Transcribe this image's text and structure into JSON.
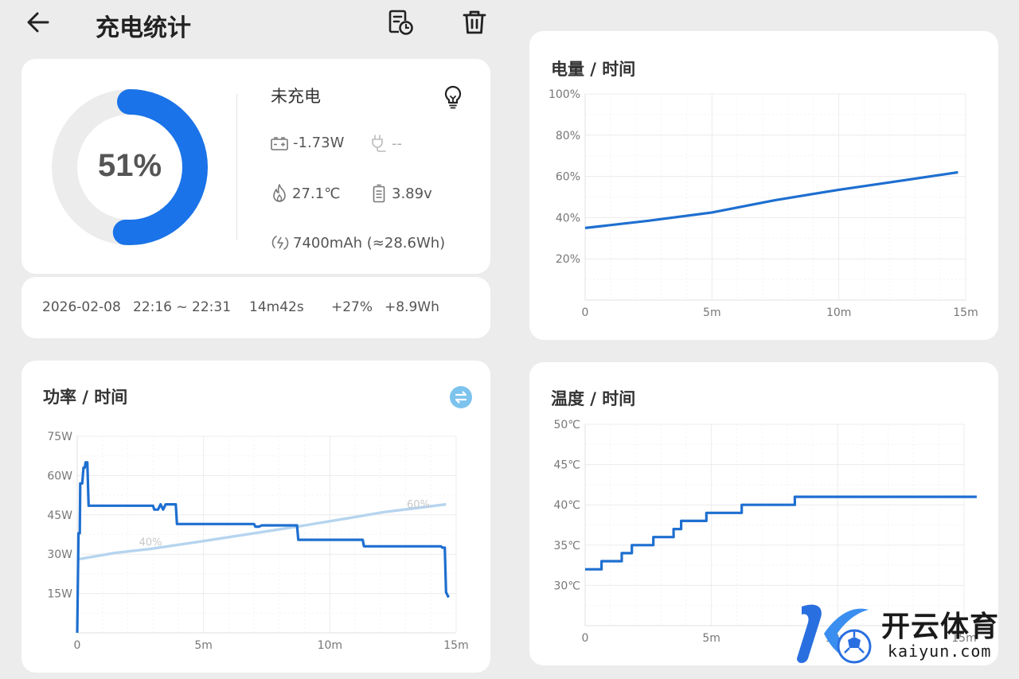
{
  "header": {
    "title": "充电统计"
  },
  "battery": {
    "percent_label": "51%",
    "percent": 51,
    "status": "未充电",
    "power": "-1.73W",
    "charger": "--",
    "temperature": "27.1℃",
    "voltage": "3.89v",
    "capacity": "7400mAh (≈28.6Wh)"
  },
  "session": {
    "date": "2026-02-08",
    "time_range": "22:16 ~ 22:31",
    "duration": "14m42s",
    "percent_change": "+27%",
    "energy_change": "+8.9Wh"
  },
  "watermark": {
    "name": "开云体育",
    "domain": "kaiyun.com"
  },
  "colors": {
    "accent": "#1a73e8",
    "line": "#1e6fd0",
    "light_line": "#b6d4ef",
    "ring_bg": "#ececec"
  },
  "chart_data": [
    {
      "type": "line",
      "title": "电量 / 时间",
      "x_ticks": [
        "0",
        "5m",
        "10m",
        "15m"
      ],
      "y_ticks": [
        "100%",
        "80%",
        "60%",
        "40%",
        "20%"
      ],
      "xlim": [
        0,
        15
      ],
      "ylim": [
        0,
        100
      ],
      "series": [
        {
          "x": [
            0,
            2.5,
            5,
            7.5,
            10,
            12.5,
            14.7
          ],
          "y": [
            35,
            38.5,
            42.5,
            48.5,
            53.5,
            58,
            62
          ]
        }
      ]
    },
    {
      "type": "line",
      "title": "功率 / 时间",
      "x_ticks": [
        "0",
        "5m",
        "10m",
        "15m"
      ],
      "y_ticks": [
        "75W",
        "60W",
        "45W",
        "30W",
        "15W"
      ],
      "xlim": [
        0,
        15
      ],
      "ylim": [
        0,
        75
      ],
      "annotations": [
        "40%",
        "60%"
      ],
      "series": [
        {
          "x": [
            0,
            0.05,
            0.1,
            0.12,
            0.2,
            0.25,
            0.3,
            0.33,
            0.4,
            0.45,
            0.5,
            3.0,
            3.05,
            3.2,
            3.3,
            3.4,
            3.5,
            3.6,
            3.9,
            3.95,
            7.0,
            7.05,
            7.2,
            7.3,
            8.7,
            8.75,
            11.3,
            11.35,
            14.4,
            14.45,
            14.55,
            14.6,
            14.7
          ],
          "y": [
            0,
            38,
            38,
            57,
            57,
            63,
            63,
            65,
            65,
            48.5,
            48.5,
            48.5,
            47,
            47,
            49,
            47,
            49,
            49,
            49,
            41.5,
            41.5,
            40.5,
            40.5,
            41,
            41,
            35.5,
            35.5,
            33,
            33,
            32.5,
            32.5,
            15.5,
            13.5
          ]
        },
        {
          "x": [
            0,
            1.5,
            2.9,
            5,
            7,
            8.7,
            10.9,
            12.1,
            14.6
          ],
          "y": [
            28,
            30.5,
            32,
            35,
            38,
            40.5,
            44,
            46,
            49
          ]
        }
      ]
    },
    {
      "type": "line",
      "title": "温度 / 时间",
      "x_ticks": [
        "0",
        "5m",
        "10m",
        "15m"
      ],
      "y_ticks": [
        "50℃",
        "45℃",
        "40℃",
        "35℃",
        "30℃"
      ],
      "xlim": [
        0,
        15
      ],
      "ylim": [
        25,
        50
      ],
      "series": [
        {
          "x": [
            0,
            0.65,
            0.65,
            1.45,
            1.45,
            1.85,
            1.85,
            2.7,
            2.7,
            3.5,
            3.5,
            3.8,
            3.8,
            4.8,
            4.8,
            6.2,
            6.2,
            8.3,
            8.3,
            15.5
          ],
          "y": [
            32,
            32,
            33,
            33,
            34,
            34,
            35,
            35,
            36,
            36,
            37,
            37,
            38,
            38,
            39,
            39,
            40,
            40,
            41,
            41
          ]
        }
      ]
    }
  ]
}
